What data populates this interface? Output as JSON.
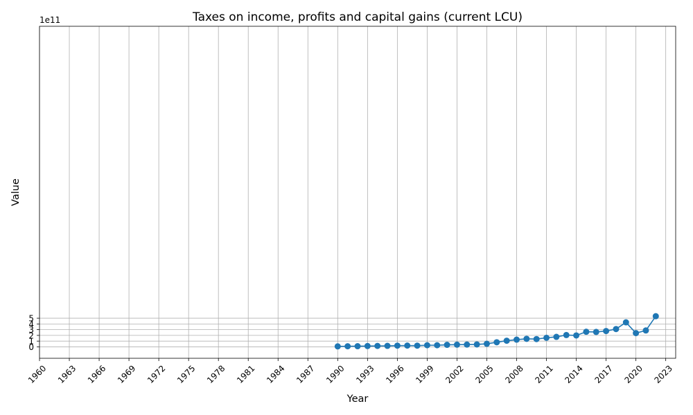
{
  "chart_data": {
    "type": "line",
    "title": "Taxes on income, profits and capital gains (current LCU)",
    "xlabel": "Year",
    "ylabel": "Value",
    "y_offset_label": "1e11",
    "xlim": [
      1960,
      2024
    ],
    "ylim": [
      -2,
      56
    ],
    "y_scale": 100000000000.0,
    "xticks": [
      1960,
      1963,
      1966,
      1969,
      1972,
      1975,
      1978,
      1981,
      1984,
      1987,
      1990,
      1993,
      1996,
      1999,
      2002,
      2005,
      2008,
      2011,
      2014,
      2017,
      2020,
      2023
    ],
    "yticks": [
      0,
      1,
      2,
      3,
      4,
      5
    ],
    "grid": true,
    "series_color": "#1f77b4",
    "x": [
      1990,
      1991,
      1992,
      1993,
      1994,
      1995,
      1996,
      1997,
      1998,
      1999,
      2000,
      2001,
      2002,
      2003,
      2004,
      2005,
      2006,
      2007,
      2008,
      2009,
      2010,
      2011,
      2012,
      2013,
      2014,
      2015,
      2016,
      2017,
      2018,
      2019,
      2020,
      2021,
      2022
    ],
    "values": [
      0.08,
      0.1,
      0.11,
      0.14,
      0.16,
      0.17,
      0.21,
      0.22,
      0.21,
      0.28,
      0.28,
      0.35,
      0.38,
      0.4,
      0.42,
      0.53,
      0.8,
      1.07,
      1.26,
      1.4,
      1.36,
      1.58,
      1.74,
      2.06,
      1.99,
      2.63,
      2.6,
      2.76,
      3.11,
      4.28,
      2.4,
      2.86,
      5.35
    ]
  }
}
